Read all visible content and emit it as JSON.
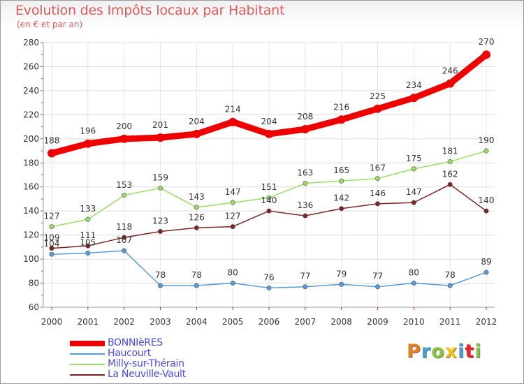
{
  "title": "Evolution des Impôts locaux par Habitant",
  "subtitle": "(en € et par an)",
  "logo": {
    "text": "Proxiti",
    "colors": [
      "#e87d22",
      "#3aa2d8",
      "#8bc53f",
      "#f3c21c",
      "#3aa2d8",
      "#e4262a",
      "#8bc53f"
    ]
  },
  "chart_data": {
    "type": "line",
    "x": [
      "2000",
      "2001",
      "2002",
      "2003",
      "2004",
      "2005",
      "2006",
      "2007",
      "2008",
      "2009",
      "2010",
      "2011",
      "2012"
    ],
    "ylim": [
      60,
      280
    ],
    "yticks": [
      60,
      80,
      100,
      120,
      140,
      160,
      180,
      200,
      220,
      240,
      260,
      280
    ],
    "grid": true,
    "legend_position": "bottom-left",
    "series": [
      {
        "name": "BONNIèRES",
        "color": "#ee0000",
        "values": [
          188,
          196,
          200,
          201,
          204,
          214,
          204,
          208,
          216,
          225,
          234,
          246,
          270
        ]
      },
      {
        "name": "Haucourt",
        "color": "#5b9bd5",
        "values": [
          104,
          105,
          107,
          78,
          78,
          80,
          76,
          77,
          79,
          77,
          80,
          78,
          89
        ]
      },
      {
        "name": "Milly-sur-Thérain",
        "color": "#99dd66",
        "values": [
          127,
          133,
          153,
          159,
          143,
          147,
          151,
          163,
          165,
          167,
          175,
          181,
          190
        ]
      },
      {
        "name": "La Neuville-Vault",
        "color": "#7b2424",
        "values": [
          109,
          111,
          118,
          123,
          126,
          127,
          140,
          136,
          142,
          146,
          147,
          162,
          140
        ]
      }
    ]
  }
}
